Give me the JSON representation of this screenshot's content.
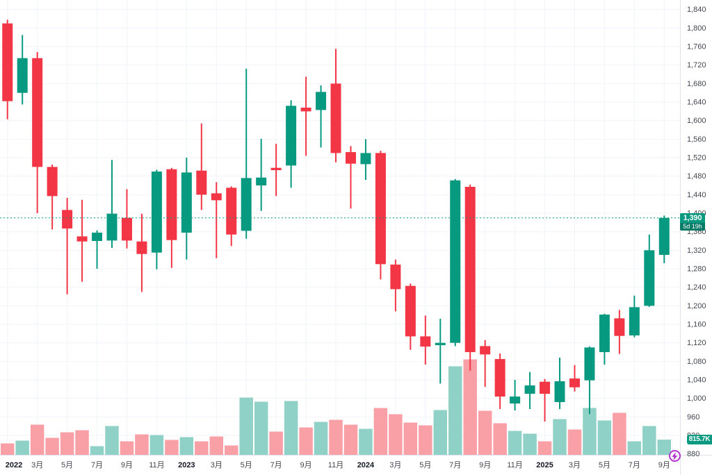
{
  "colors": {
    "up": "#089981",
    "down": "#f23645",
    "vol_up": "#8fd1c6",
    "vol_down": "#f8a0a6",
    "grid": "#f0f3fa",
    "axis_line": "#e0e3eb",
    "axis_text": "#42464e",
    "year_text": "#131722",
    "badge_bg": "#089981",
    "badge_countdown_bg": "#077a68",
    "volume_badge_bg": "#089981",
    "current_price_line": "#089981",
    "marker_purple": "#b237cc",
    "background": "#ffffff"
  },
  "price_badge": {
    "price_label": "1,390",
    "countdown": "5d 19h"
  },
  "volume_badge": {
    "label": "815.7K"
  },
  "price_axis": {
    "ticks": [
      {
        "label": "1,840",
        "price": 1840
      },
      {
        "label": "1,800",
        "price": 1800
      },
      {
        "label": "1,760",
        "price": 1760
      },
      {
        "label": "1,720",
        "price": 1720
      },
      {
        "label": "1,680",
        "price": 1680
      },
      {
        "label": "1,640",
        "price": 1640
      },
      {
        "label": "1,600",
        "price": 1600
      },
      {
        "label": "1,560",
        "price": 1560
      },
      {
        "label": "1,520",
        "price": 1520
      },
      {
        "label": "1,480",
        "price": 1480
      },
      {
        "label": "1,440",
        "price": 1440
      },
      {
        "label": "1,400",
        "price": 1400
      },
      {
        "label": "1,360",
        "price": 1360
      },
      {
        "label": "1,320",
        "price": 1320
      },
      {
        "label": "1,280",
        "price": 1280
      },
      {
        "label": "1,240",
        "price": 1240
      },
      {
        "label": "1,200",
        "price": 1200
      },
      {
        "label": "1,160",
        "price": 1160
      },
      {
        "label": "1,120",
        "price": 1120
      },
      {
        "label": "1,080",
        "price": 1080
      },
      {
        "label": "1,040",
        "price": 1040
      },
      {
        "label": "1,000",
        "price": 1000
      },
      {
        "label": "960",
        "price": 960
      },
      {
        "label": "920",
        "price": 920
      },
      {
        "label": "880",
        "price": 880
      }
    ]
  },
  "time_axis": {
    "labels": [
      {
        "text": "2022",
        "i": 0,
        "year": true
      },
      {
        "text": "3月",
        "i": 2
      },
      {
        "text": "5月",
        "i": 4
      },
      {
        "text": "7月",
        "i": 6
      },
      {
        "text": "9月",
        "i": 8
      },
      {
        "text": "11月",
        "i": 10
      },
      {
        "text": "2023",
        "i": 12,
        "year": true
      },
      {
        "text": "3月",
        "i": 14
      },
      {
        "text": "5月",
        "i": 16
      },
      {
        "text": "7月",
        "i": 18
      },
      {
        "text": "9月",
        "i": 20
      },
      {
        "text": "11月",
        "i": 22
      },
      {
        "text": "2024",
        "i": 24,
        "year": true
      },
      {
        "text": "3月",
        "i": 26
      },
      {
        "text": "5月",
        "i": 28
      },
      {
        "text": "7月",
        "i": 30
      },
      {
        "text": "9月",
        "i": 32
      },
      {
        "text": "11月",
        "i": 34
      },
      {
        "text": "2025",
        "i": 36,
        "year": true
      },
      {
        "text": "3月",
        "i": 38
      },
      {
        "text": "5月",
        "i": 40
      },
      {
        "text": "7月",
        "i": 42
      },
      {
        "text": "9月",
        "i": 44
      }
    ]
  },
  "chart_data": {
    "type": "candlestick",
    "interval": "monthly",
    "ylim": [
      880,
      1840
    ],
    "y_tick_step": 40,
    "current_price": 1390,
    "current_volume_k": 815.7,
    "countdown": "5d 19h",
    "grid": "on",
    "x": [
      "2022-01",
      "2022-02",
      "2022-03",
      "2022-04",
      "2022-05",
      "2022-06",
      "2022-07",
      "2022-08",
      "2022-09",
      "2022-10",
      "2022-11",
      "2022-12",
      "2023-01",
      "2023-02",
      "2023-03",
      "2023-04",
      "2023-05",
      "2023-06",
      "2023-07",
      "2023-08",
      "2023-09",
      "2023-10",
      "2023-11",
      "2023-12",
      "2024-01",
      "2024-02",
      "2024-03",
      "2024-04",
      "2024-05",
      "2024-06",
      "2024-07",
      "2024-08",
      "2024-09",
      "2024-10",
      "2024-11",
      "2024-12",
      "2025-01",
      "2025-02",
      "2025-03",
      "2025-04",
      "2025-05",
      "2025-06",
      "2025-07",
      "2025-08",
      "2025-09"
    ],
    "ohlc": [
      [
        1810,
        1818,
        1603,
        1642
      ],
      [
        1660,
        1785,
        1635,
        1735
      ],
      [
        1735,
        1748,
        1400,
        1500
      ],
      [
        1500,
        1505,
        1365,
        1437
      ],
      [
        1407,
        1433,
        1225,
        1367
      ],
      [
        1350,
        1429,
        1252,
        1339
      ],
      [
        1340,
        1363,
        1280,
        1358
      ],
      [
        1341,
        1515,
        1325,
        1399
      ],
      [
        1390,
        1452,
        1324,
        1341
      ],
      [
        1339,
        1399,
        1230,
        1312
      ],
      [
        1315,
        1494,
        1279,
        1490
      ],
      [
        1495,
        1498,
        1282,
        1342
      ],
      [
        1358,
        1520,
        1300,
        1488
      ],
      [
        1492,
        1594,
        1407,
        1440
      ],
      [
        1443,
        1467,
        1303,
        1428
      ],
      [
        1455,
        1458,
        1329,
        1354
      ],
      [
        1362,
        1712,
        1345,
        1476
      ],
      [
        1460,
        1561,
        1405,
        1477
      ],
      [
        1498,
        1550,
        1437,
        1493
      ],
      [
        1503,
        1644,
        1455,
        1632
      ],
      [
        1628,
        1695,
        1524,
        1620
      ],
      [
        1623,
        1676,
        1542,
        1662
      ],
      [
        1680,
        1755,
        1510,
        1530
      ],
      [
        1532,
        1545,
        1410,
        1507
      ],
      [
        1506,
        1560,
        1472,
        1530
      ],
      [
        1530,
        1535,
        1257,
        1290
      ],
      [
        1289,
        1300,
        1188,
        1236
      ],
      [
        1243,
        1248,
        1105,
        1134
      ],
      [
        1134,
        1179,
        1073,
        1112
      ],
      [
        1115,
        1172,
        1032,
        1120
      ],
      [
        1120,
        1474,
        1113,
        1471
      ],
      [
        1457,
        1462,
        1060,
        1100
      ],
      [
        1113,
        1126,
        1025,
        1095
      ],
      [
        1085,
        1097,
        977,
        1004
      ],
      [
        989,
        1040,
        974,
        1004
      ],
      [
        1010,
        1057,
        977,
        1028
      ],
      [
        1036,
        1042,
        950,
        1010
      ],
      [
        992,
        1088,
        977,
        1037
      ],
      [
        1043,
        1072,
        1015,
        1024
      ],
      [
        1039,
        1112,
        966,
        1110
      ],
      [
        1100,
        1183,
        1073,
        1181
      ],
      [
        1173,
        1191,
        1096,
        1135
      ],
      [
        1136,
        1222,
        1132,
        1197
      ],
      [
        1200,
        1354,
        1198,
        1320
      ],
      [
        1310,
        1395,
        1292,
        1390
      ]
    ],
    "volume_k": [
      617,
      762,
      1597,
      908,
      1198,
      1307,
      472,
      1525,
      726,
      1089,
      1053,
      799,
      944,
      726,
      980,
      508,
      3013,
      2795,
      1234,
      2831,
      1452,
      1742,
      1851,
      1597,
      1379,
      2468,
      2142,
      1706,
      1561,
      2360,
      4646,
      5009,
      2323,
      1670,
      1270,
      1125,
      726,
      1888,
      1343,
      2468,
      1815,
      2214,
      726,
      1525,
      815.7
    ]
  }
}
